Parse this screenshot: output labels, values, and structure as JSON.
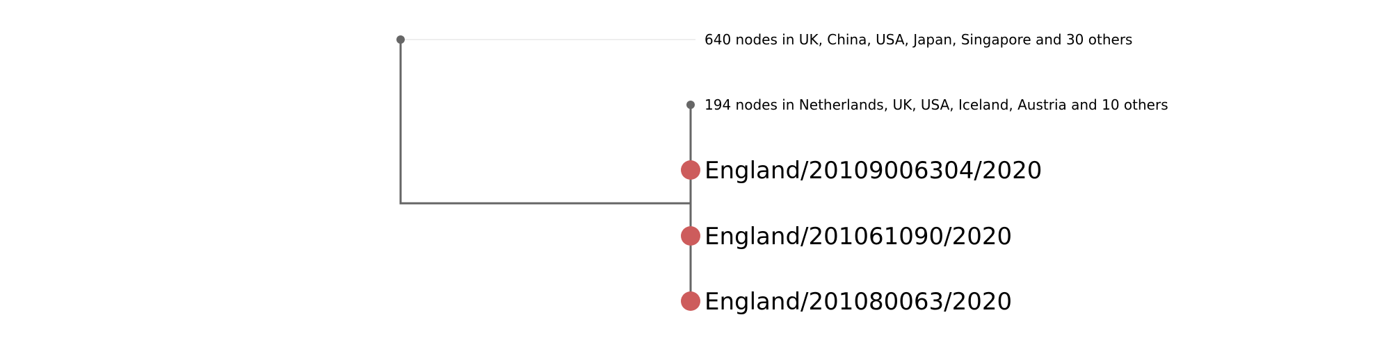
{
  "colors": {
    "branch": "#666666",
    "collapsed_node": "#666666",
    "leaf_highlight": "#cd5c5c",
    "faint_connector": "#e8e8e8",
    "label": "#000000"
  },
  "tree": {
    "collapsed_groups": [
      {
        "label": "640 nodes in UK, China, USA, Japan, Singapore and 30 others"
      },
      {
        "label": "194 nodes in Netherlands, UK, USA, Iceland, Austria and 10 others"
      }
    ],
    "leaves": [
      {
        "label": "England/20109006304/2020"
      },
      {
        "label": "England/201061090/2020"
      },
      {
        "label": "England/201080063/2020"
      }
    ]
  }
}
